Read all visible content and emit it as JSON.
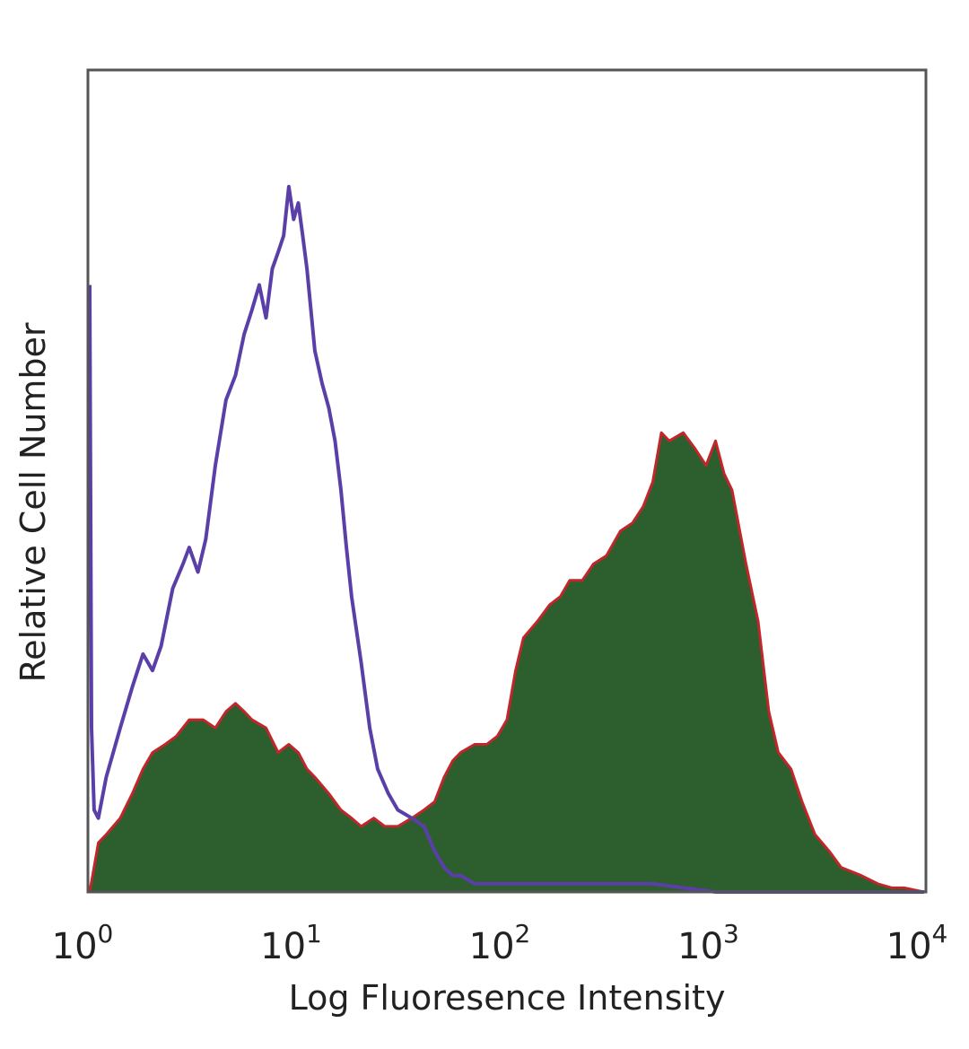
{
  "chart_data": {
    "type": "area",
    "xlabel": "Log Fluoresence Intensity",
    "ylabel": "Relative Cell Number",
    "x_scale": "log",
    "xlim": [
      1,
      10000
    ],
    "ylim": [
      0,
      100
    ],
    "grid": false,
    "y_ticks_shown": false,
    "x_ticks": [
      {
        "base": "10",
        "exp": "0",
        "value": 1
      },
      {
        "base": "10",
        "exp": "1",
        "value": 10
      },
      {
        "base": "10",
        "exp": "2",
        "value": 100
      },
      {
        "base": "10",
        "exp": "3",
        "value": 1000
      },
      {
        "base": "10",
        "exp": "4",
        "value": 10000
      }
    ],
    "series": [
      {
        "style": "filled histogram with red outline",
        "color": "#2d5e2e",
        "outline_color": "#c0262a",
        "x": [
          1,
          1.1,
          1.2,
          1.4,
          1.6,
          1.8,
          2.0,
          2.3,
          2.6,
          3.0,
          3.5,
          4.0,
          4.5,
          5.0,
          5.5,
          6.0,
          7.0,
          8.0,
          9.0,
          10,
          11,
          12,
          14,
          16,
          18,
          20,
          23,
          26,
          30,
          35,
          40,
          45,
          50,
          55,
          60,
          70,
          80,
          90,
          100,
          110,
          120,
          140,
          160,
          180,
          200,
          230,
          260,
          300,
          350,
          400,
          450,
          500,
          550,
          600,
          700,
          800,
          900,
          1000,
          1100,
          1200,
          1400,
          1600,
          1800,
          2000,
          2300,
          2600,
          3000,
          3500,
          4000,
          5000,
          6000,
          7000,
          8000,
          10000
        ],
        "values": [
          0,
          6,
          7,
          9,
          12,
          15,
          17,
          18,
          19,
          21,
          21,
          20,
          22,
          23,
          22,
          21,
          20,
          17,
          18,
          17,
          15,
          14,
          12,
          10,
          9,
          8,
          9,
          8,
          8,
          9,
          10,
          11,
          14,
          16,
          17,
          18,
          18,
          19,
          21,
          27,
          31,
          33,
          35,
          36,
          38,
          38,
          40,
          41,
          44,
          45,
          47,
          50,
          56,
          55,
          56,
          54,
          52,
          55,
          51,
          49,
          40,
          33,
          22,
          17,
          15,
          11,
          7,
          5,
          3,
          2,
          1,
          0.5,
          0.5,
          0
        ]
      },
      {
        "style": "outline histogram",
        "color": "#5b3fa8",
        "x": [
          1,
          1.02,
          1.05,
          1.1,
          1.2,
          1.4,
          1.6,
          1.8,
          2.0,
          2.2,
          2.5,
          2.8,
          3.0,
          3.3,
          3.6,
          4.0,
          4.5,
          5.0,
          5.5,
          6.0,
          6.5,
          7.0,
          7.5,
          8.0,
          8.5,
          9.0,
          9.5,
          10,
          10.5,
          11,
          12,
          13,
          14,
          15,
          16,
          17,
          18,
          20,
          22,
          24,
          27,
          30,
          35,
          40,
          45,
          50,
          55,
          60,
          70,
          80,
          90,
          100,
          120,
          150,
          200,
          300,
          500,
          1000,
          2000,
          5000,
          10000
        ],
        "values": [
          74,
          20,
          10,
          9,
          14,
          20,
          25,
          29,
          27,
          30,
          37,
          40,
          42,
          39,
          43,
          52,
          60,
          63,
          68,
          71,
          74,
          70,
          76,
          78,
          80,
          86,
          82,
          84,
          80,
          76,
          66,
          62,
          59,
          55,
          49,
          42,
          36,
          28,
          20,
          15,
          12,
          10,
          9,
          8,
          5,
          3,
          2,
          2,
          1,
          1,
          1,
          1,
          1,
          1,
          1,
          1,
          1,
          0,
          0,
          0,
          0
        ]
      }
    ]
  }
}
